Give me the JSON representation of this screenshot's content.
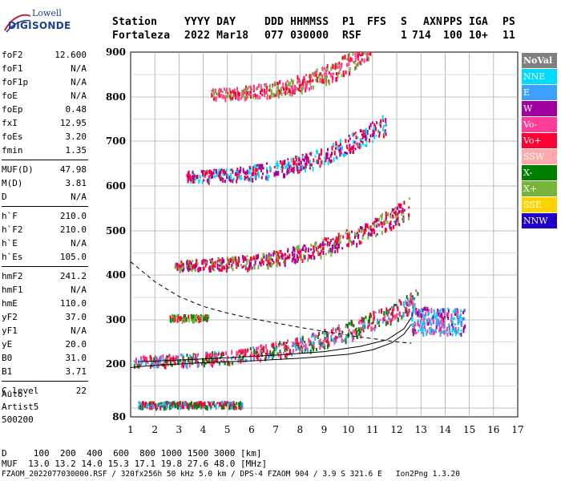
{
  "logo": {
    "line1": "Lowell",
    "line2": "DIGISONDE"
  },
  "header": {
    "labels": [
      "Station",
      "YYYY DAY",
      "DDD HHMMSS",
      "P1",
      "FFS",
      "S",
      "AXN",
      "PPS",
      "IGA",
      "PS"
    ],
    "values": [
      "Fortaleza",
      "2022 Mar18",
      "077 030000",
      "RSF",
      "",
      "1",
      "714",
      "100",
      "10+",
      "11"
    ]
  },
  "parameters": [
    {
      "label": "foF2",
      "value": "12.600"
    },
    {
      "label": "foF1",
      "value": "N/A"
    },
    {
      "label": "foF1p",
      "value": "N/A"
    },
    {
      "label": "foE",
      "value": "N/A"
    },
    {
      "label": "foEp",
      "value": "0.48"
    },
    {
      "label": "fxI",
      "value": "12.95"
    },
    {
      "label": "foEs",
      "value": "3.20"
    },
    {
      "label": "fmin",
      "value": "1.35"
    },
    {
      "label": "MUF(D)",
      "value": "47.98"
    },
    {
      "label": "M(D)",
      "value": "3.81"
    },
    {
      "label": "D",
      "value": "N/A"
    },
    {
      "label": "h`F",
      "value": "210.0"
    },
    {
      "label": "h`F2",
      "value": "210.0"
    },
    {
      "label": "h`E",
      "value": "N/A"
    },
    {
      "label": "h`Es",
      "value": "105.0"
    },
    {
      "label": "hmF2",
      "value": "241.2"
    },
    {
      "label": "hmF1",
      "value": "N/A"
    },
    {
      "label": "hmE",
      "value": "110.0"
    },
    {
      "label": "yF2",
      "value": "37.0"
    },
    {
      "label": "yF1",
      "value": "N/A"
    },
    {
      "label": "yE",
      "value": "20.0"
    },
    {
      "label": "B0",
      "value": "31.0"
    },
    {
      "label": "B1",
      "value": "3.71"
    },
    {
      "label": "C-level",
      "value": "22"
    }
  ],
  "auto_info": {
    "line1": "Auto:",
    "line2": "Artist5",
    "line3": "500200"
  },
  "legend": [
    {
      "label": "NoVal",
      "color": "#808080"
    },
    {
      "label": "NNE",
      "color": "#00dcff"
    },
    {
      "label": "E",
      "color": "#3ca0ff"
    },
    {
      "label": "W",
      "color": "#a000a0"
    },
    {
      "label": "Vo-",
      "color": "#ff3c96"
    },
    {
      "label": "Vo+",
      "color": "#ff0032"
    },
    {
      "label": "SSW",
      "color": "#ffaaaa"
    },
    {
      "label": "X-",
      "color": "#008000"
    },
    {
      "label": "X+",
      "color": "#78b43c"
    },
    {
      "label": "SSE",
      "color": "#ffd200"
    },
    {
      "label": "NNW",
      "color": "#1e00c8"
    }
  ],
  "footer": {
    "d_line": "D     100  200  400  600  800 1000 1500 3000 [km]",
    "muf_line": "MUF  13.0 13.2 14.0 15.3 17.1 19.8 27.6 48.0 [MHz]",
    "file_line": "FZAOM_2022077030000.RSF / 320fx256h 50 kHz 5.0 km / DPS-4 FZAOM 904 / 3.9 S 321.6 E   Ion2Png 1.3.20"
  },
  "chart_data": {
    "type": "scatter",
    "xlim": [
      1,
      17
    ],
    "ylim": [
      80,
      900
    ],
    "x_ticks": [
      1,
      2,
      3,
      4,
      5,
      6,
      7,
      8,
      9,
      10,
      11,
      12,
      13,
      14,
      15,
      16,
      17
    ],
    "y_ticks": [
      80,
      200,
      300,
      400,
      500,
      600,
      700,
      800,
      900
    ],
    "grid": true,
    "traces": [
      {
        "name": "F2 first hop",
        "x_range": [
          1.1,
          12.9
        ],
        "h_start": 205,
        "h_end": 340,
        "shape": "rising",
        "colors": [
          "#ff0032",
          "#3ca0ff",
          "#008000",
          "#ff3c96"
        ]
      },
      {
        "name": "F2 second hop",
        "x_range": [
          2.8,
          12.5
        ],
        "h_start": 420,
        "h_end": 545,
        "shape": "rising",
        "colors": [
          "#ff0032",
          "#a000a0",
          "#78b43c"
        ]
      },
      {
        "name": "F2 third hop",
        "x_range": [
          3.3,
          11.6
        ],
        "h_start": 620,
        "h_end": 735,
        "shape": "rising",
        "colors": [
          "#ff0032",
          "#a000a0",
          "#00dcff"
        ]
      },
      {
        "name": "F2 fourth hop",
        "x_range": [
          4.3,
          10.9
        ],
        "h_start": 805,
        "h_end": 900,
        "shape": "rising",
        "colors": [
          "#ff0032",
          "#78b43c",
          "#ff3c96"
        ]
      },
      {
        "name": "Es first",
        "x_range": [
          1.3,
          5.6
        ],
        "h_start": 108,
        "h_end": 108,
        "shape": "flat",
        "colors": [
          "#ff0032",
          "#3ca0ff",
          "#008000"
        ]
      },
      {
        "name": "Es second",
        "x_range": [
          2.6,
          4.2
        ],
        "h_start": 305,
        "h_end": 305,
        "shape": "flat",
        "colors": [
          "#008000",
          "#78b43c",
          "#ff0032"
        ]
      },
      {
        "name": "Spread F",
        "x_range": [
          12.6,
          14.8
        ],
        "h_start": 270,
        "h_end": 330,
        "shape": "cluster",
        "colors": [
          "#3ca0ff",
          "#00dcff",
          "#a000a0",
          "#ff3c96"
        ]
      }
    ],
    "profile": [
      {
        "f": 1.0,
        "h": 192
      },
      {
        "f": 2.0,
        "h": 197
      },
      {
        "f": 4.0,
        "h": 203
      },
      {
        "f": 6.0,
        "h": 207
      },
      {
        "f": 8.0,
        "h": 213
      },
      {
        "f": 10.0,
        "h": 222
      },
      {
        "f": 11.0,
        "h": 232
      },
      {
        "f": 11.8,
        "h": 248
      },
      {
        "f": 12.3,
        "h": 268
      },
      {
        "f": 12.6,
        "h": 290
      }
    ],
    "fitted_trace": [
      {
        "f": 1.3,
        "h": 205
      },
      {
        "f": 3.0,
        "h": 209
      },
      {
        "f": 5.0,
        "h": 214
      },
      {
        "f": 7.0,
        "h": 220
      },
      {
        "f": 9.0,
        "h": 228
      },
      {
        "f": 10.5,
        "h": 240
      },
      {
        "f": 11.6,
        "h": 255
      },
      {
        "f": 12.3,
        "h": 280
      },
      {
        "f": 12.6,
        "h": 305
      }
    ],
    "muf_curve": [
      {
        "f": 1.0,
        "h": 430
      },
      {
        "f": 2.0,
        "h": 385
      },
      {
        "f": 3.0,
        "h": 352
      },
      {
        "f": 4.0,
        "h": 330
      },
      {
        "f": 5.0,
        "h": 315
      },
      {
        "f": 6.0,
        "h": 303
      },
      {
        "f": 8.0,
        "h": 283
      },
      {
        "f": 10.0,
        "h": 265
      },
      {
        "f": 12.0,
        "h": 250
      },
      {
        "f": 12.6,
        "h": 247
      }
    ]
  }
}
